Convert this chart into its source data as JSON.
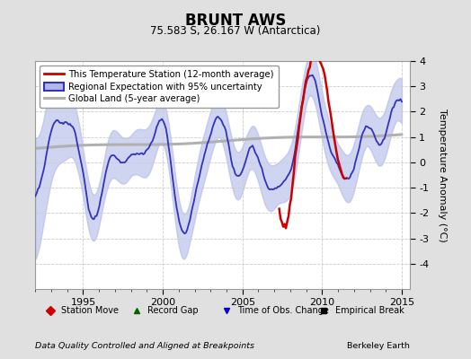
{
  "title": "BRUNT AWS",
  "subtitle": "75.583 S, 26.167 W (Antarctica)",
  "ylabel": "Temperature Anomaly (°C)",
  "footer_left": "Data Quality Controlled and Aligned at Breakpoints",
  "footer_right": "Berkeley Earth",
  "xlim": [
    1992.0,
    2015.5
  ],
  "ylim": [
    -5,
    4
  ],
  "yticks": [
    -4,
    -3,
    -2,
    -1,
    0,
    1,
    2,
    3,
    4
  ],
  "xticks": [
    1995,
    2000,
    2005,
    2010,
    2015
  ],
  "background_color": "#e0e0e0",
  "plot_bg_color": "#ffffff",
  "grid_color": "#cccccc",
  "regional_line_color": "#3333bb",
  "regional_fill_color": "#b0b8e8",
  "station_line_color": "#cc0000",
  "global_line_color": "#b0b0b0",
  "legend_entries": [
    "This Temperature Station (12-month average)",
    "Regional Expectation with 95% uncertainty",
    "Global Land (5-year average)"
  ],
  "bottom_legend": [
    {
      "marker": "D",
      "color": "#cc0000",
      "label": "Station Move"
    },
    {
      "marker": "^",
      "color": "#006600",
      "label": "Record Gap"
    },
    {
      "marker": "v",
      "color": "#0000cc",
      "label": "Time of Obs. Change"
    },
    {
      "marker": "s",
      "color": "#000000",
      "label": "Empirical Break"
    }
  ]
}
